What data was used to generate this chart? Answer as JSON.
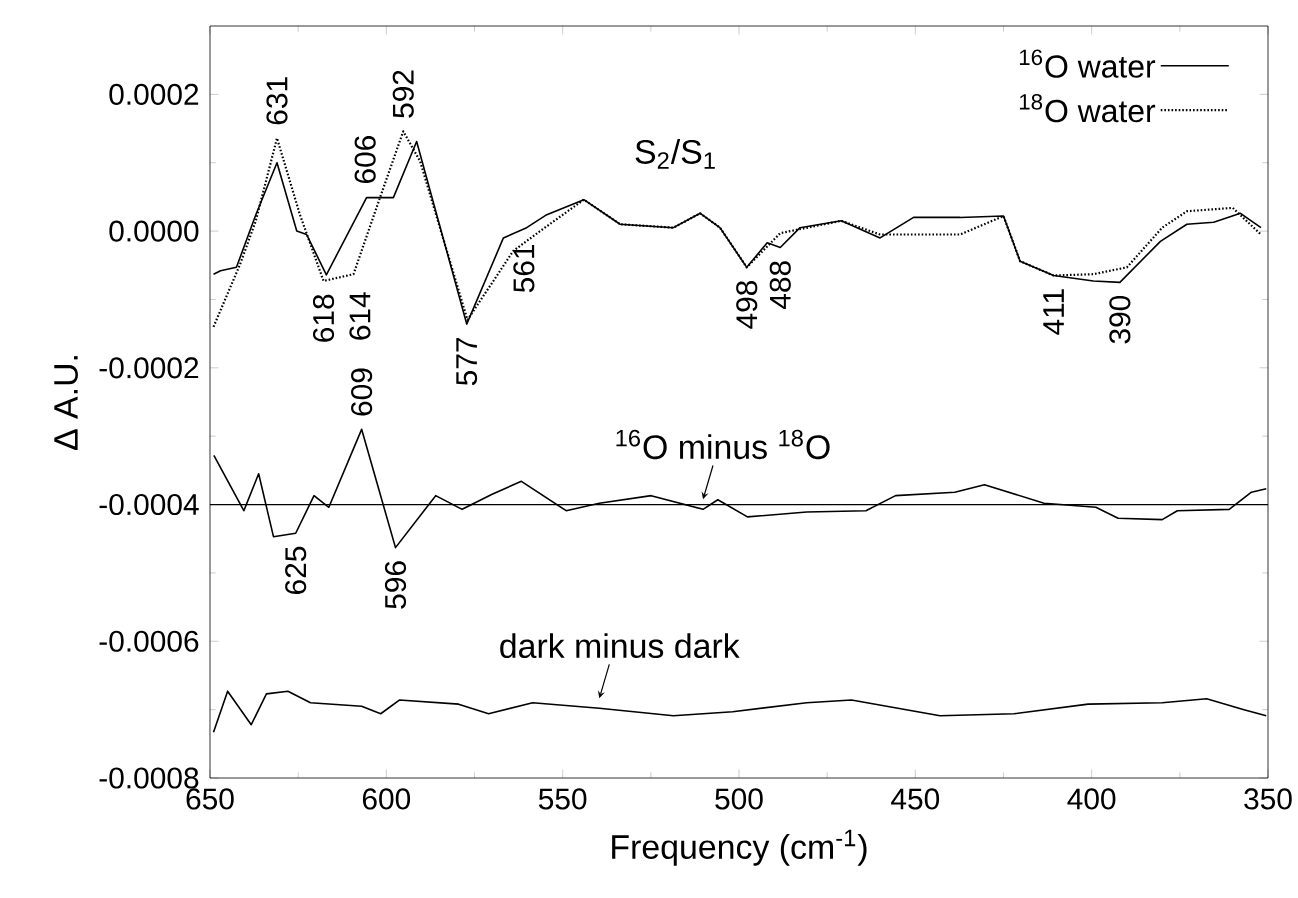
{
  "chart_data": {
    "type": "line",
    "xlabel": "Frequency (cm$^{-1}$)",
    "ylabel": "Δ A.U.",
    "xlim": [
      650,
      350
    ],
    "ylim": [
      -0.0008,
      0.0003
    ],
    "xticks": [
      650,
      600,
      550,
      500,
      450,
      400,
      350
    ],
    "yticks": [
      {
        "value": -0.0008,
        "label": "-0.0008"
      },
      {
        "value": -0.0006,
        "label": "-0.0006"
      },
      {
        "value": -0.0004,
        "label": "-0.0004"
      },
      {
        "value": -0.0002,
        "label": "-0.0002"
      },
      {
        "value": 0,
        "label": "0.0000"
      },
      {
        "value": 0.0002,
        "label": "0.0002"
      }
    ],
    "legend": "top right",
    "grid": false,
    "series": [
      {
        "name": "$^{16}$O water",
        "color": "#000000",
        "line_style": "solid",
        "x": [
          649,
          647,
          642.5,
          637,
          631,
          625.4,
          622.6,
          617,
          605.6,
          598,
          591.4,
          577.2,
          566.8,
          560.2,
          554.5,
          544,
          533.7,
          518.6,
          511,
          505.4,
          497.8,
          492,
          488.3,
          482.7,
          471,
          460,
          450.5,
          437.3,
          425,
          420.3,
          410.8,
          399.5,
          392,
          380.5,
          373,
          365.4,
          357.8,
          352
        ],
        "values": [
          -6.3e-05,
          -5.8e-05,
          -5.3e-05,
          2.4e-05,
          0.0001,
          0.0,
          -5e-06,
          -6.4e-05,
          4.9e-05,
          4.9e-05,
          0.000131,
          -0.000136,
          -1e-05,
          5e-06,
          2.4e-05,
          4.6e-05,
          1e-05,
          5e-06,
          2.6e-05,
          5e-06,
          -5.3e-05,
          -1.7e-05,
          -2.4e-05,
          5e-06,
          1.5e-05,
          -1e-05,
          2e-05,
          2e-05,
          2.2e-05,
          -4.4e-05,
          -6.5e-05,
          -7.3e-05,
          -7.5e-05,
          -1.5e-05,
          1e-05,
          1.3e-05,
          2.6e-05,
          5e-06
        ]
      },
      {
        "name": "$^{18}$O water",
        "color": "#000000",
        "line_style": "dotted",
        "x": [
          649,
          641.5,
          637,
          631,
          624.5,
          617.8,
          609.3,
          602.8,
          595.2,
          590.4,
          577,
          564,
          556.4,
          544,
          533.7,
          518.6,
          511,
          505.4,
          497.8,
          488.3,
          471,
          460,
          450.5,
          437.3,
          425,
          420.3,
          410.8,
          399.5,
          390,
          380,
          373,
          360,
          352
        ],
        "values": [
          -0.00014,
          -4.9e-05,
          1.5e-05,
          0.000136,
          2.4e-05,
          -7.3e-05,
          -6.3e-05,
          3.4e-05,
          0.000146,
          0.000102,
          -0.00013,
          -2.9e-05,
          0.0,
          4.6e-05,
          1e-05,
          5e-06,
          2.6e-05,
          5e-06,
          -5.3e-05,
          -3e-06,
          1.5e-05,
          -5e-06,
          -5e-06,
          -5e-06,
          2.2e-05,
          -4.4e-05,
          -6.5e-05,
          -6.3e-05,
          -5.3e-05,
          5e-06,
          2.9e-05,
          3.4e-05,
          -5e-06
        ]
      },
      {
        "name": "$^{16}$O minus $^{18}$O",
        "color": "#000000",
        "line_style": "solid",
        "x": [
          648.9,
          640.4,
          636.2,
          632,
          625.7,
          620.5,
          616.3,
          607,
          597.4,
          586,
          578.5,
          570,
          561.7,
          549,
          539.6,
          524.9,
          510.2,
          506,
          497.6,
          480.8,
          464,
          455.6,
          438.8,
          430.4,
          413.5,
          398.8,
          392.5,
          380,
          375.7,
          361,
          354.7,
          350.5
        ],
        "values": [
          -0.000328,
          -0.000409,
          -0.000355,
          -0.000447,
          -0.000442,
          -0.000387,
          -0.000404,
          -0.00029,
          -0.000463,
          -0.000387,
          -0.000407,
          -0.000385,
          -0.000366,
          -0.000409,
          -0.000398,
          -0.000387,
          -0.000407,
          -0.000393,
          -0.000418,
          -0.000411,
          -0.000409,
          -0.000387,
          -0.000382,
          -0.000371,
          -0.000398,
          -0.000404,
          -0.00042,
          -0.000422,
          -0.000409,
          -0.000407,
          -0.000382,
          -0.000377
        ]
      },
      {
        "name": "dark minus dark",
        "color": "#000000",
        "line_style": "solid",
        "x": [
          649,
          645,
          638.3,
          634,
          627.9,
          621.5,
          607,
          601.6,
          596.3,
          579.5,
          571,
          558.5,
          539.6,
          518.6,
          501.8,
          480.8,
          468.1,
          443,
          422,
          401,
          380,
          367.4,
          356.8,
          350.5
        ],
        "values": [
          -0.000733,
          -0.000673,
          -0.000722,
          -0.000677,
          -0.000673,
          -0.00069,
          -0.000695,
          -0.000706,
          -0.000686,
          -0.000692,
          -0.000706,
          -0.00069,
          -0.000698,
          -0.000709,
          -0.000703,
          -0.00069,
          -0.000686,
          -0.000709,
          -0.000706,
          -0.000692,
          -0.00069,
          -0.000684,
          -0.0007,
          -0.000709
        ]
      }
    ],
    "ref_lines": [
      {
        "axis": "y",
        "value": -0.0004,
        "color": "#000000"
      }
    ],
    "annotations": [
      "S$_{2}$/S$_{1}$",
      {
        "text": "631",
        "x": 631,
        "y": 0.000136
      },
      {
        "text": "606",
        "x": 606,
        "y": 5e-05
      },
      {
        "text": "592",
        "x": 595.2,
        "y": 0.000146
      },
      {
        "text": "618",
        "x": 617.8,
        "y": -7.3e-05
      },
      {
        "text": "614",
        "x": 612,
        "y": -7e-05
      },
      {
        "text": "609",
        "x": 607,
        "y": -0.00029
      },
      {
        "text": "577",
        "x": 577.2,
        "y": -0.000136
      },
      {
        "text": "561",
        "x": 561,
        "y": 0.0
      },
      {
        "text": "498",
        "x": 497.8,
        "y": -5.3e-05
      },
      {
        "text": "488",
        "x": 488.3,
        "y": -2.4e-05
      },
      {
        "text": "411",
        "x": 410.8,
        "y": -6.5e-05
      },
      {
        "text": "390",
        "x": 392,
        "y": -7.5e-05
      },
      {
        "text": "625",
        "x": 625.7,
        "y": -0.000442
      },
      {
        "text": "596",
        "x": 597.4,
        "y": -0.000463
      }
    ]
  }
}
